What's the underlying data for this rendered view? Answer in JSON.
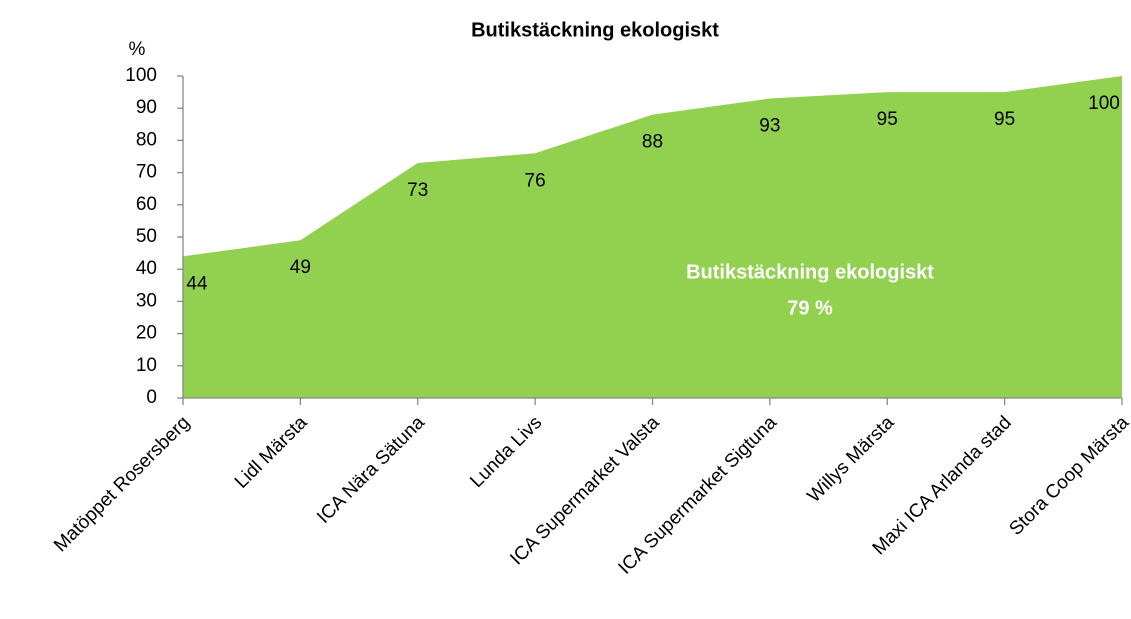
{
  "chart_data": {
    "type": "area",
    "title": "Butikstäckning ekologiskt",
    "y_label": "%",
    "categories": [
      "Matöppet Rosersberg",
      "Lidl Märsta",
      "ICA Nära Sätuna",
      "Lunda Livs",
      "ICA Supermarket Valsta",
      "ICA Supermarket Sigtuna",
      "Willys Märsta",
      "Maxi ICA Arlanda stad",
      "Stora Coop Märsta"
    ],
    "values": [
      44,
      49,
      73,
      76,
      88,
      93,
      95,
      95,
      100
    ],
    "color": "#92d050",
    "ylim": [
      0,
      100
    ],
    "yticks": [
      0,
      10,
      20,
      30,
      40,
      50,
      60,
      70,
      80,
      90,
      100
    ],
    "annotation": [
      "Butikstäckning ekologiskt",
      "79 %"
    ]
  }
}
